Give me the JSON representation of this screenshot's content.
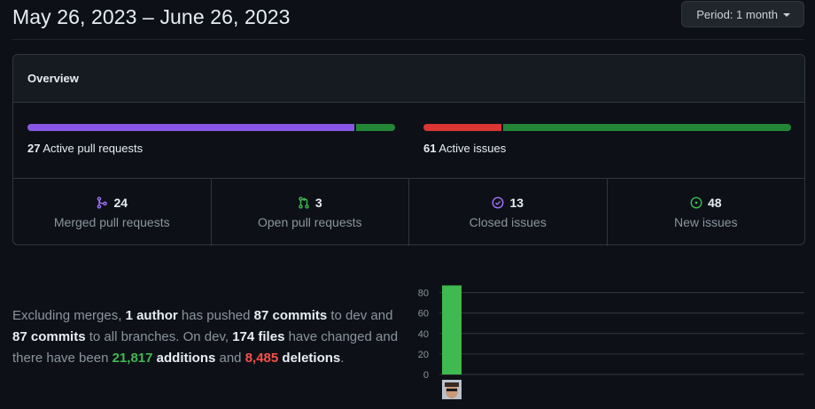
{
  "header": {
    "date_range": "May 26, 2023 – June 26, 2023",
    "period_label": "Period: 1 month"
  },
  "overview": {
    "title": "Overview",
    "pull_requests": {
      "count": "27",
      "label": "Active pull requests",
      "merged_fraction": 0.889,
      "colors": {
        "merged": "#8957e5",
        "open": "#238636"
      }
    },
    "issues": {
      "count": "61",
      "label": "Active issues",
      "closed_fraction": 0.213,
      "colors": {
        "closed": "#da3633",
        "new": "#238636"
      }
    },
    "stats": [
      {
        "icon": "merge-icon",
        "value": "24",
        "label": "Merged pull requests",
        "color": "#a371f7"
      },
      {
        "icon": "pull-request-icon",
        "value": "3",
        "label": "Open pull requests",
        "color": "#3fb950"
      },
      {
        "icon": "issue-closed-icon",
        "value": "13",
        "label": "Closed issues",
        "color": "#a371f7"
      },
      {
        "icon": "issue-opened-icon",
        "value": "48",
        "label": "New issues",
        "color": "#3fb950"
      }
    ]
  },
  "commits": {
    "t1": "Excluding merges, ",
    "authors": "1 author",
    "t2": " has pushed ",
    "commits_dev": "87 commits",
    "t3": " to dev and ",
    "commits_all": "87 commits",
    "t4": " to all branches. On dev, ",
    "files": "174 files",
    "t5": " have changed and there have been ",
    "additions_num": "21,817",
    "additions_word": "additions",
    "t6": " and ",
    "deletions_num": "8,485",
    "deletions_word": "deletions",
    "t7": "."
  },
  "chart_data": {
    "type": "bar",
    "categories": [
      "author avatar"
    ],
    "values": [
      87
    ],
    "ylim": [
      0,
      90
    ],
    "yticks": [
      "0",
      "20",
      "40",
      "60",
      "80"
    ],
    "bar_color": "#3fb950",
    "grid": true
  }
}
